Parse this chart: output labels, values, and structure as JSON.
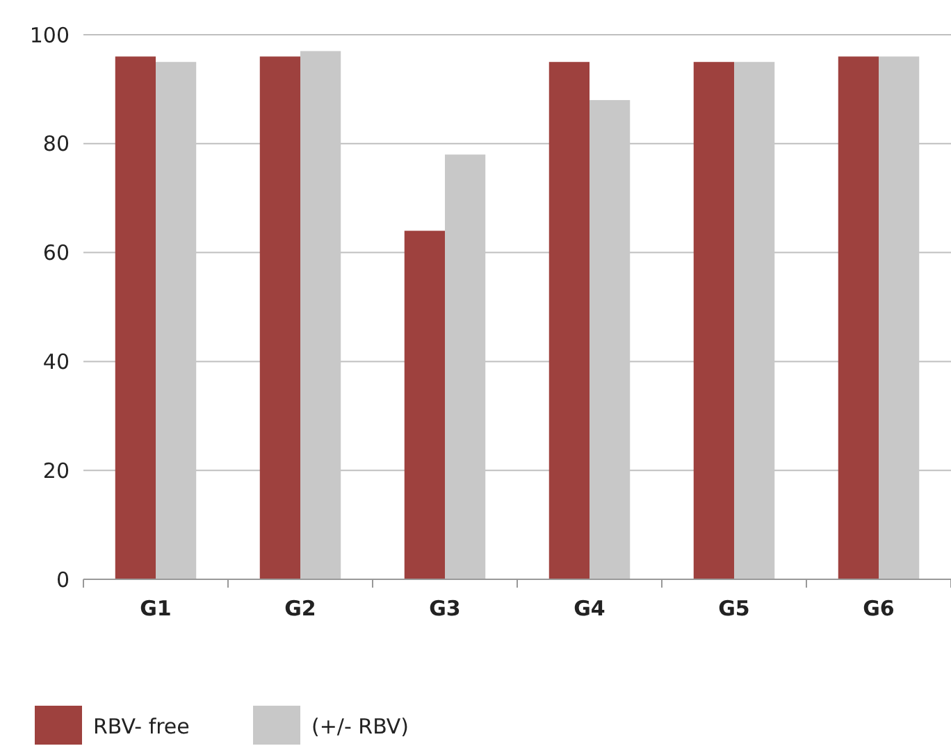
{
  "chart_data": {
    "type": "bar",
    "categories": [
      "G1",
      "G2",
      "G3",
      "G4",
      "G5",
      "G6"
    ],
    "series": [
      {
        "name": "RBV- free",
        "color": "#9e413e",
        "values": [
          96,
          96,
          64,
          95,
          95,
          96
        ]
      },
      {
        "name": "(+/- RBV)",
        "color": "#c8c8c8",
        "values": [
          95,
          97,
          78,
          88,
          95,
          96
        ]
      }
    ],
    "ylim": [
      0,
      100
    ],
    "yticks": [
      0,
      20,
      40,
      60,
      80,
      100
    ],
    "grid": "y",
    "legend": "bottom left"
  }
}
